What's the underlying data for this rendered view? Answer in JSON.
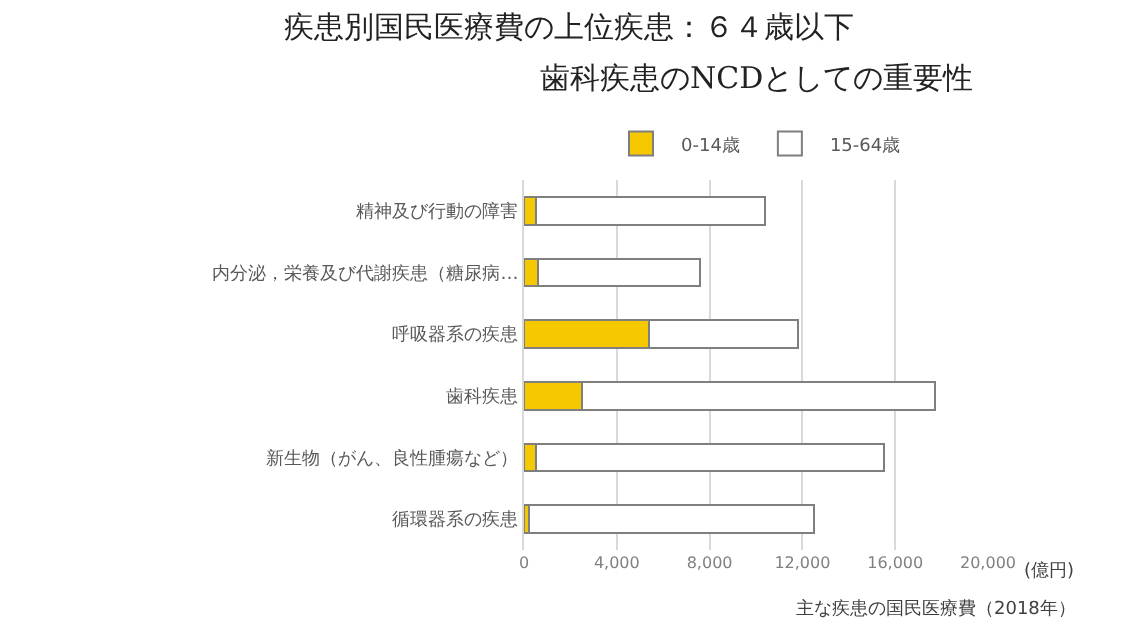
{
  "chart_data": {
    "type": "bar",
    "orientation": "horizontal",
    "stacked": true,
    "title": "疾患別国民医療費の上位疾患：６４歳以下",
    "subtitle": "歯科疾患のNCDとしての重要性",
    "categories": [
      "精神及び行動の障害",
      "内分泌，栄養及び代謝疾患（糖尿病…",
      "呼吸器系の疾患",
      "歯科疾患",
      "新生物（がん、良性腫瘍など）",
      "循環器系の疾患"
    ],
    "series": [
      {
        "name": "0-14歳",
        "color": "#f5c800",
        "values": [
          500,
          600,
          5400,
          2500,
          500,
          200
        ]
      },
      {
        "name": "15-64歳",
        "color": "#ffffff",
        "values": [
          9900,
          7000,
          6400,
          15200,
          15000,
          12300
        ]
      }
    ],
    "xlabel": "(億円)",
    "xlim": [
      0,
      20000
    ],
    "xticks": [
      {
        "value": 0,
        "label": "0"
      },
      {
        "value": 4000,
        "label": "4,000"
      },
      {
        "value": 8000,
        "label": "8,000"
      },
      {
        "value": 12000,
        "label": "12,000"
      },
      {
        "value": 16000,
        "label": "16,000"
      },
      {
        "value": 20000,
        "label": "20,000"
      }
    ],
    "grid": "x",
    "legend": "top",
    "annotations": [
      "主な疾患の国民医療費（2018年）"
    ]
  }
}
